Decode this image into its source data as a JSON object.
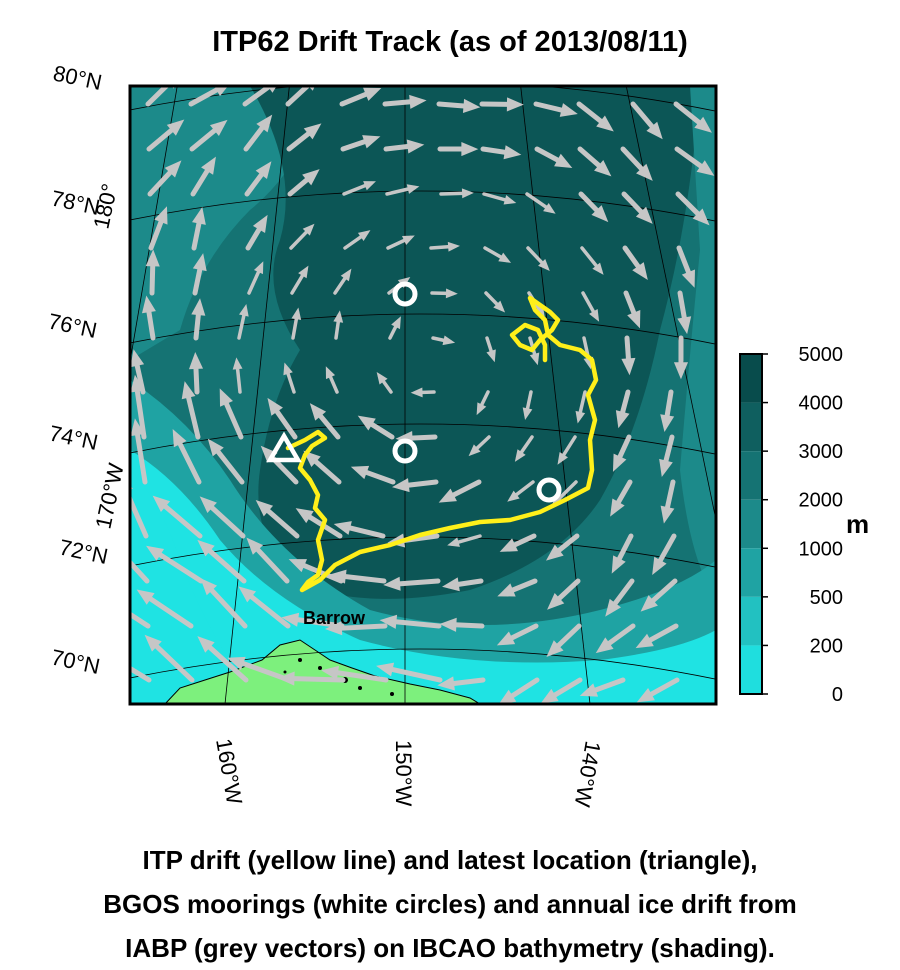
{
  "title": "ITP62 Drift Track (as of 2013/08/11)",
  "lat_labels": [
    "80°N",
    "78°N",
    "76°N",
    "74°N",
    "72°N",
    "70°N"
  ],
  "lon_labels_bottom": [
    "160°W",
    "150°W",
    "140°W"
  ],
  "lon_labels_left": [
    "180°",
    "170°W"
  ],
  "place_label": "Barrow",
  "colorbar": {
    "unit": "m",
    "ticks": [
      "5000",
      "4000",
      "3000",
      "2000",
      "1000",
      "500",
      "200",
      "0"
    ],
    "colors": [
      "#084c4c",
      "#0f5f5f",
      "#157373",
      "#1c8a8a",
      "#1fa3a3",
      "#22c1c1",
      "#1fdede"
    ]
  },
  "colors": {
    "land": "#7df07d",
    "shelf": "#1fe3e3",
    "deep": "#0c5656",
    "track": "#ffef1a",
    "vectors": "#c6c6c6",
    "markers": "#ffffff"
  },
  "caption": [
    "ITP drift (yellow line) and latest location (triangle),",
    "BGOS moorings (white circles) and annual ice drift from",
    "IABP (grey vectors) on IBCAO bathymetry (shading)."
  ]
}
